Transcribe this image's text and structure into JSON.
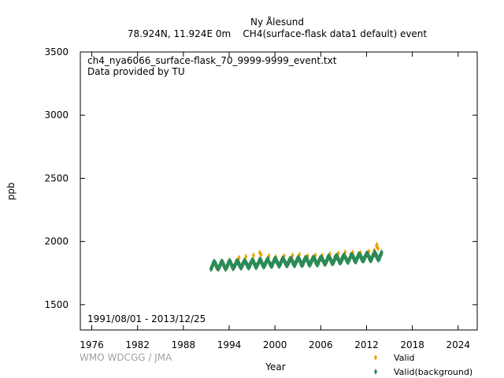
{
  "chart_data": {
    "type": "scatter",
    "title_station": "Ny Ålesund",
    "title_detail": "78.924N, 11.924E 0m    CH4(surface-flask data1 default) event",
    "filename": "ch4_nya6066_surface-flask_70_9999-9999_event.txt",
    "provider": "Data provided by TU",
    "date_range": "1991/08/01 - 2013/12/25",
    "credit": "WMO WDCGG / JMA",
    "xlabel": "Year",
    "ylabel": "ppb",
    "xlim": [
      1974.5,
      2026.5
    ],
    "ylim": [
      1300,
      3500
    ],
    "xticks": [
      1976,
      1982,
      1988,
      1994,
      2000,
      2006,
      2012,
      2018,
      2024
    ],
    "yticks": [
      1500,
      2000,
      2500,
      3000,
      3500
    ],
    "grid": false,
    "legend_position": "bottom-right, outside plot",
    "series": [
      {
        "name": "Valid",
        "color": "#f0a000",
        "marker": "diamond",
        "points": [
          [
            1995.3,
            1872
          ],
          [
            1996.2,
            1880
          ],
          [
            1997.2,
            1890
          ],
          [
            1998.0,
            1912
          ],
          [
            1998.2,
            1895
          ],
          [
            1999.2,
            1885
          ],
          [
            2000.1,
            1878
          ],
          [
            2001.2,
            1886
          ],
          [
            2002.3,
            1890
          ],
          [
            2003.2,
            1895
          ],
          [
            2004.3,
            1886
          ],
          [
            2005.3,
            1890
          ],
          [
            2006.2,
            1888
          ],
          [
            2007.2,
            1900
          ],
          [
            2008.3,
            1905
          ],
          [
            2009.2,
            1915
          ],
          [
            2010.2,
            1912
          ],
          [
            2011.2,
            1910
          ],
          [
            2012.3,
            1920
          ],
          [
            2013.0,
            1930
          ],
          [
            2013.3,
            1965
          ],
          [
            2013.35,
            1975
          ],
          [
            2013.5,
            1945
          ]
        ]
      },
      {
        "name": "Valid(background)",
        "color": "#2e8b57",
        "marker": "diamond",
        "trend": {
          "x_start": 1991.6,
          "x_end": 2014.0,
          "baseline_points": [
            [
              1991.6,
              1808
            ],
            [
              2000.0,
              1835
            ],
            [
              2006.0,
              1848
            ],
            [
              2014.0,
              1888
            ]
          ],
          "seasonal_amplitude": 24,
          "peak_month_fraction": 0.05,
          "scatter": 10,
          "samples_per_year": 70
        }
      }
    ]
  }
}
